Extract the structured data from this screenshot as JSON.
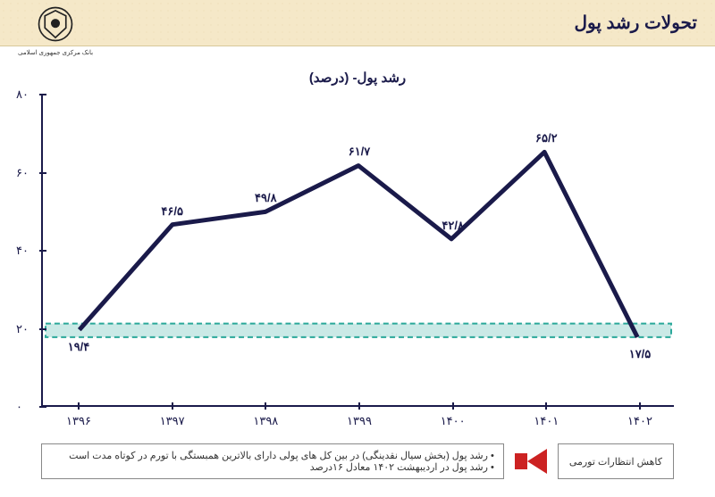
{
  "header": {
    "title": "تحولات رشد پول",
    "logo_caption": "بانک مرکزی جمهوری اسلامی"
  },
  "chart": {
    "type": "line",
    "title": "رشد پول- (درصد)",
    "categories": [
      "۱۳۹۶",
      "۱۳۹۷",
      "۱۳۹۸",
      "۱۳۹۹",
      "۱۴۰۰",
      "۱۴۰۱",
      "۱۴۰۲"
    ],
    "values": [
      19.4,
      46.5,
      49.8,
      61.7,
      42.8,
      65.2,
      17.5
    ],
    "value_labels": [
      "۱۹/۴",
      "۴۶/۵",
      "۴۹/۸",
      "۶۱/۷",
      "۴۲/۸",
      "۶۵/۲",
      "۱۷/۵"
    ],
    "label_offsets": [
      "below",
      "above",
      "above",
      "above",
      "above",
      "above",
      "below"
    ],
    "ylim": [
      0,
      80
    ],
    "yticks": [
      0,
      20,
      40,
      60,
      80
    ],
    "ytick_labels": [
      "۰",
      "۲۰",
      "۴۰",
      "۶۰",
      "۸۰"
    ],
    "line_color": "#1a1a4a",
    "line_width": 5,
    "axis_color": "#1a1a4a",
    "reference_band": {
      "y_low": 17.5,
      "y_high": 21,
      "fill_color": "#2aa89a",
      "fill_opacity": 0.25,
      "border_color": "#2aa89a",
      "border_dash": "6,4",
      "border_width": 2
    },
    "background_color": "#ffffff",
    "title_fontsize": 15,
    "tick_fontsize": 13,
    "datalabel_fontsize": 13
  },
  "footer": {
    "bullets": [
      "رشد پول (بخش سیال نقدینگی) در بین کل های پولی دارای بالاترین همبستگی با تورم در کوتاه مدت است",
      "رشد پول در اردیبهشت ۱۴۰۲ معادل ۱۶درصد"
    ],
    "arrow_label": "کاهش انتظارات تورمی",
    "arrow_color": "#c22"
  }
}
